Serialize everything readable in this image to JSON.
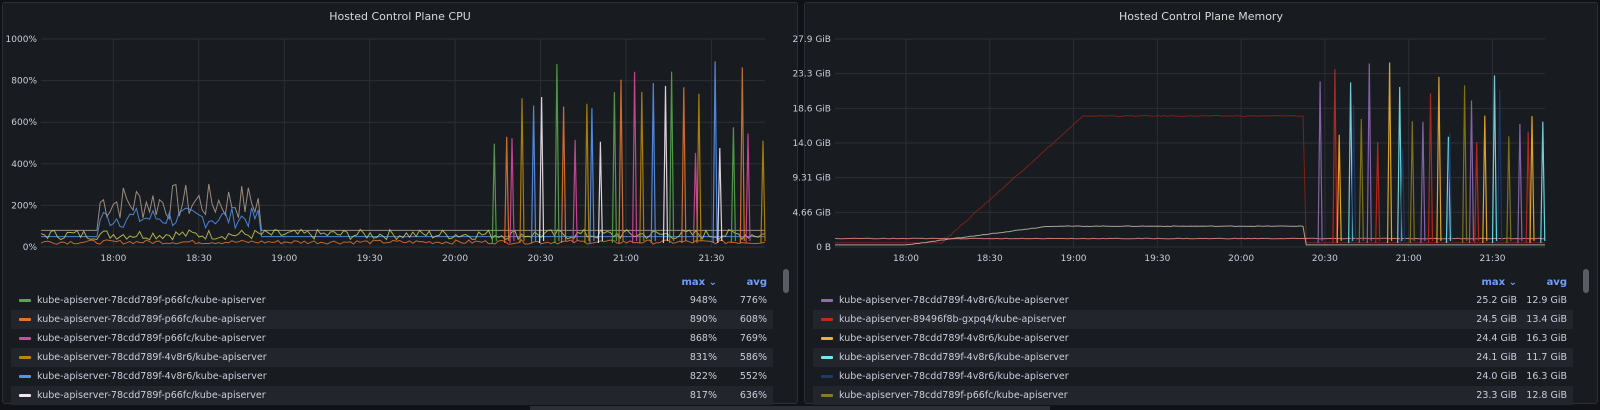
{
  "panels": [
    {
      "title": "Hosted Control Plane CPU",
      "y_ticks": [
        "1000%",
        "800%",
        "600%",
        "400%",
        "200%",
        "0%"
      ],
      "x_ticks": [
        "18:00",
        "18:30",
        "19:00",
        "19:30",
        "20:00",
        "20:30",
        "21:00",
        "21:30"
      ],
      "legend_headers": {
        "max": "max ⌄",
        "avg": "avg"
      },
      "legend": [
        {
          "name": "kube-apiserver-78cdd789f-p66fc/kube-apiserver",
          "color": "#56a64b",
          "max": "948%",
          "avg": "776%"
        },
        {
          "name": "kube-apiserver-78cdd789f-p66fc/kube-apiserver",
          "color": "#e0752d",
          "max": "890%",
          "avg": "608%"
        },
        {
          "name": "kube-apiserver-78cdd789f-p66fc/kube-apiserver",
          "color": "#d44a9a",
          "max": "868%",
          "avg": "769%"
        },
        {
          "name": "kube-apiserver-78cdd789f-4v8r6/kube-apiserver",
          "color": "#b8860b",
          "max": "831%",
          "avg": "586%"
        },
        {
          "name": "kube-apiserver-78cdd789f-4v8r6/kube-apiserver",
          "color": "#5794f2",
          "max": "822%",
          "avg": "552%"
        },
        {
          "name": "kube-apiserver-78cdd789f-p66fc/kube-apiserver",
          "color": "#f0e6f0",
          "max": "817%",
          "avg": "636%"
        }
      ]
    },
    {
      "title": "Hosted Control Plane Memory",
      "y_ticks": [
        "27.9 GiB",
        "23.3 GiB",
        "18.6 GiB",
        "14.0 GiB",
        "9.31 GiB",
        "4.66 GiB",
        "0 B"
      ],
      "x_ticks": [
        "18:00",
        "18:30",
        "19:00",
        "19:30",
        "20:00",
        "20:30",
        "21:00",
        "21:30"
      ],
      "legend_headers": {
        "max": "max ⌄",
        "avg": "avg"
      },
      "legend": [
        {
          "name": "kube-apiserver-78cdd789f-4v8r6/kube-apiserver",
          "color": "#8f6bb5",
          "max": "25.2 GiB",
          "avg": "12.9 GiB"
        },
        {
          "name": "kube-apiserver-89496f8b-gxpq4/kube-apiserver",
          "color": "#c4281b",
          "max": "24.5 GiB",
          "avg": "13.4 GiB"
        },
        {
          "name": "kube-apiserver-78cdd789f-4v8r6/kube-apiserver",
          "color": "#f2b02a",
          "max": "24.4 GiB",
          "avg": "16.3 GiB"
        },
        {
          "name": "kube-apiserver-78cdd789f-4v8r6/kube-apiserver",
          "color": "#73e6f0",
          "max": "24.1 GiB",
          "avg": "11.7 GiB"
        },
        {
          "name": "kube-apiserver-78cdd789f-4v8r6/kube-apiserver",
          "color": "#1f3a66",
          "max": "24.0 GiB",
          "avg": "16.3 GiB"
        },
        {
          "name": "kube-apiserver-78cdd789f-p66fc/kube-apiserver",
          "color": "#8a7a1a",
          "max": "23.3 GiB",
          "avg": "12.8 GiB"
        }
      ]
    }
  ]
}
